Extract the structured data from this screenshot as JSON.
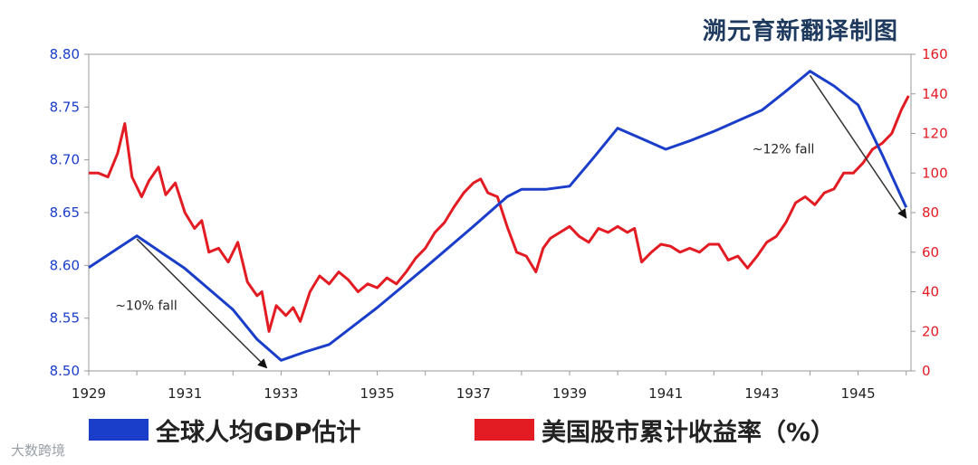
{
  "brand_title": "溯元育新翻译制图",
  "footer_logo": "大数跨境",
  "chart_data": {
    "type": "line",
    "x_ticks": [
      "1929",
      "1931",
      "1933",
      "1935",
      "1937",
      "1939",
      "1941",
      "1943",
      "1945"
    ],
    "left_axis": {
      "ticks": [
        "8.50",
        "8.55",
        "8.60",
        "8.65",
        "8.70",
        "8.75",
        "8.80"
      ],
      "ylim": [
        8.5,
        8.8
      ],
      "color": "#1a3ec9"
    },
    "right_axis": {
      "ticks": [
        "0",
        "20",
        "40",
        "60",
        "80",
        "100",
        "120",
        "140",
        "160"
      ],
      "ylim": [
        0,
        160
      ],
      "color": "#e31b23"
    },
    "xlim": [
      1929.0,
      1946.1
    ],
    "series": [
      {
        "name": "全球人均GDP估计",
        "axis": "left",
        "color": "#1a3ec9",
        "x": [
          1929.0,
          1929.5,
          1930.0,
          1931.0,
          1932.0,
          1932.5,
          1933.0,
          1933.5,
          1934.0,
          1935.0,
          1936.0,
          1937.0,
          1937.7,
          1938.0,
          1938.5,
          1939.0,
          1939.5,
          1940.0,
          1940.5,
          1941.0,
          1941.5,
          1942.0,
          1942.5,
          1943.0,
          1943.5,
          1944.0,
          1944.5,
          1945.0,
          1945.5,
          1946.0
        ],
        "values": [
          8.598,
          8.613,
          8.628,
          8.597,
          8.558,
          8.53,
          8.51,
          8.518,
          8.525,
          8.56,
          8.598,
          8.637,
          8.665,
          8.672,
          8.672,
          8.675,
          8.702,
          8.73,
          8.72,
          8.71,
          8.718,
          8.727,
          8.737,
          8.747,
          8.765,
          8.784,
          8.77,
          8.752,
          8.705,
          8.655
        ]
      },
      {
        "name": "美国股市累计收益率（%）",
        "axis": "right",
        "color": "#e31b23",
        "x": [
          1929.0,
          1929.2,
          1929.4,
          1929.6,
          1929.75,
          1929.9,
          1930.1,
          1930.25,
          1930.45,
          1930.6,
          1930.8,
          1931.0,
          1931.2,
          1931.35,
          1931.5,
          1931.7,
          1931.9,
          1932.1,
          1932.3,
          1932.5,
          1932.6,
          1932.75,
          1932.9,
          1933.1,
          1933.25,
          1933.4,
          1933.6,
          1933.8,
          1934.0,
          1934.2,
          1934.4,
          1934.6,
          1934.8,
          1935.0,
          1935.2,
          1935.4,
          1935.6,
          1935.8,
          1936.0,
          1936.2,
          1936.4,
          1936.6,
          1936.8,
          1937.0,
          1937.15,
          1937.3,
          1937.5,
          1937.7,
          1937.9,
          1938.1,
          1938.3,
          1938.45,
          1938.6,
          1938.8,
          1939.0,
          1939.2,
          1939.4,
          1939.6,
          1939.8,
          1940.0,
          1940.2,
          1940.35,
          1940.5,
          1940.7,
          1940.9,
          1941.1,
          1941.3,
          1941.5,
          1941.7,
          1941.9,
          1942.1,
          1942.3,
          1942.5,
          1942.7,
          1942.9,
          1943.1,
          1943.3,
          1943.5,
          1943.7,
          1943.9,
          1944.1,
          1944.3,
          1944.5,
          1944.7,
          1944.9,
          1945.1,
          1945.3,
          1945.5,
          1945.7,
          1945.9,
          1946.05
        ],
        "values": [
          100,
          100,
          98,
          110,
          125,
          98,
          88,
          96,
          103,
          89,
          95,
          80,
          72,
          76,
          60,
          62,
          55,
          65,
          45,
          38,
          40,
          20,
          33,
          28,
          32,
          25,
          40,
          48,
          44,
          50,
          46,
          40,
          44,
          42,
          47,
          44,
          50,
          57,
          62,
          70,
          75,
          83,
          90,
          95,
          97,
          90,
          88,
          73,
          60,
          58,
          50,
          62,
          67,
          70,
          73,
          68,
          65,
          72,
          70,
          73,
          70,
          72,
          55,
          60,
          64,
          63,
          60,
          62,
          60,
          64,
          64,
          56,
          58,
          52,
          58,
          65,
          68,
          75,
          85,
          88,
          84,
          90,
          92,
          100,
          100,
          105,
          112,
          115,
          120,
          132,
          139
        ]
      }
    ],
    "annotations": [
      {
        "text": "~10% fall",
        "x": 1929.55,
        "y": 8.558,
        "arrow_from": [
          1930.0,
          8.625
        ],
        "arrow_to": [
          1932.7,
          8.503
        ]
      },
      {
        "text": "~12% fall",
        "x": 1942.8,
        "y": 8.706,
        "arrow_from": [
          1944.0,
          8.78
        ],
        "arrow_to": [
          1946.0,
          8.645
        ]
      }
    ]
  }
}
